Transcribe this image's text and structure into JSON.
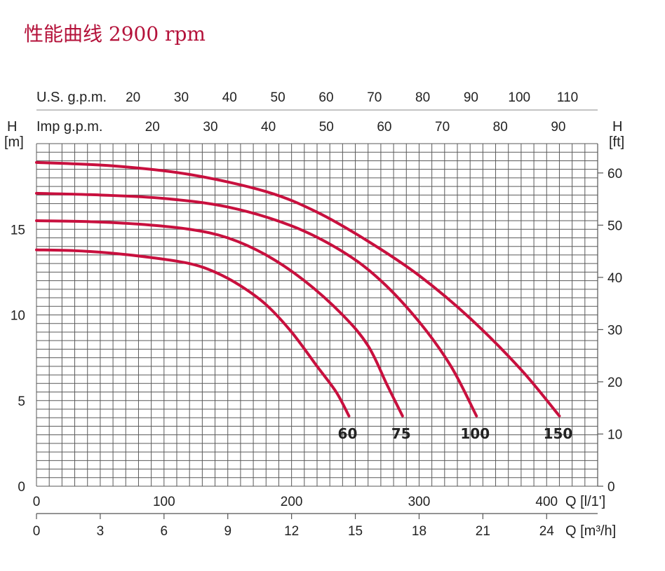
{
  "title": "性能曲线 2900 rpm",
  "chart_data": {
    "type": "line",
    "x_unit_label": "Q [l/1']",
    "x2_unit_label": "Q [m³/h]",
    "y_left_label": "H",
    "y_left_unit": "[m]",
    "y_right_label": "H",
    "y_right_unit": "[ft]",
    "us_gpm_label": "U.S. g.p.m.",
    "imp_gpm_label": "Imp g.p.m.",
    "xlim": [
      0,
      440
    ],
    "ylim": [
      0,
      20
    ],
    "x_ticks_lmin": [
      0,
      100,
      200,
      300,
      400
    ],
    "x_ticks_m3h": [
      0,
      3,
      6,
      9,
      12,
      15,
      18,
      21,
      24
    ],
    "x_ticks_usgpm": [
      20,
      30,
      40,
      50,
      60,
      70,
      80,
      90,
      100,
      110
    ],
    "x_ticks_impgpm": [
      20,
      30,
      40,
      50,
      60,
      70,
      80,
      90
    ],
    "y_ticks_m": [
      0,
      5,
      10,
      15
    ],
    "y_ticks_ft": [
      0,
      10,
      20,
      30,
      40,
      50,
      60
    ],
    "grid": true,
    "series": [
      {
        "name": "60",
        "points": [
          [
            0,
            13.8
          ],
          [
            30,
            13.75
          ],
          [
            60,
            13.6
          ],
          [
            90,
            13.35
          ],
          [
            120,
            13.0
          ],
          [
            140,
            12.5
          ],
          [
            160,
            11.7
          ],
          [
            180,
            10.6
          ],
          [
            200,
            9.0
          ],
          [
            220,
            7.0
          ],
          [
            235,
            5.5
          ],
          [
            245,
            4.1
          ]
        ]
      },
      {
        "name": "75",
        "points": [
          [
            0,
            15.5
          ],
          [
            40,
            15.45
          ],
          [
            80,
            15.3
          ],
          [
            120,
            15.0
          ],
          [
            150,
            14.5
          ],
          [
            180,
            13.5
          ],
          [
            210,
            12.0
          ],
          [
            240,
            10.0
          ],
          [
            260,
            8.2
          ],
          [
            275,
            5.9
          ],
          [
            287,
            4.1
          ]
        ]
      },
      {
        "name": "100",
        "points": [
          [
            0,
            17.1
          ],
          [
            50,
            17.0
          ],
          [
            100,
            16.8
          ],
          [
            150,
            16.3
          ],
          [
            200,
            15.2
          ],
          [
            240,
            13.7
          ],
          [
            270,
            12.0
          ],
          [
            300,
            9.6
          ],
          [
            325,
            7.0
          ],
          [
            345,
            4.1
          ]
        ]
      },
      {
        "name": "150",
        "points": [
          [
            0,
            18.9
          ],
          [
            60,
            18.7
          ],
          [
            120,
            18.2
          ],
          [
            180,
            17.2
          ],
          [
            220,
            16.0
          ],
          [
            260,
            14.3
          ],
          [
            300,
            12.3
          ],
          [
            340,
            9.8
          ],
          [
            380,
            6.8
          ],
          [
            410,
            4.1
          ]
        ]
      }
    ]
  },
  "colors": {
    "curve": "#c8103e",
    "grid": "#5a5a5a",
    "title": "#b4123a"
  }
}
